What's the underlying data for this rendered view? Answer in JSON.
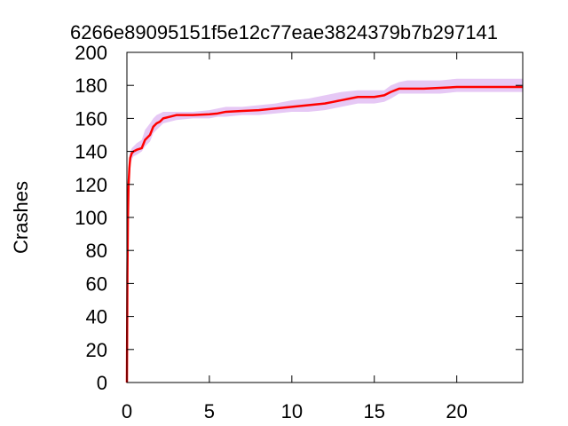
{
  "chart_data": {
    "type": "line",
    "title": "6266e89095151f5e12c77eae3824379b7b297141",
    "xlabel": "",
    "ylabel": "Crashes",
    "xlim": [
      0,
      24
    ],
    "ylim": [
      0,
      200
    ],
    "xticks": [
      0,
      5,
      10,
      15,
      20
    ],
    "yticks": [
      0,
      20,
      40,
      60,
      80,
      100,
      120,
      140,
      160,
      180,
      200
    ],
    "grid": false,
    "line_color": "#ff0000",
    "band_color": "#e6c8f5",
    "series": [
      {
        "x": [
          0,
          0.03,
          0.06,
          0.1,
          0.15,
          0.2,
          0.3,
          0.4,
          0.6,
          0.9,
          1.1,
          1.4,
          1.6,
          1.8,
          2.0,
          2.2,
          2.6,
          3.0,
          4.0,
          5.0,
          5.5,
          6.0,
          7.0,
          8.0,
          9.0,
          10.0,
          11.0,
          12.0,
          12.5,
          13.0,
          14.0,
          15.0,
          15.6,
          16.0,
          16.5,
          17.0,
          18.0,
          19.0,
          20.0,
          21.0,
          22.0,
          23.0,
          24.0
        ],
        "y": [
          0,
          65,
          100,
          120,
          130,
          136,
          139,
          140,
          141,
          142,
          147,
          150,
          155,
          157,
          158,
          160,
          161,
          162,
          162,
          162.5,
          163,
          164,
          164.5,
          165,
          166,
          167,
          168,
          169,
          170,
          171,
          173,
          173,
          174,
          176,
          178,
          178,
          178,
          178.5,
          179,
          179,
          179,
          179,
          179
        ],
        "upper": [
          0,
          72,
          110,
          128,
          137,
          140,
          142,
          143,
          145,
          147,
          153,
          157,
          160,
          162,
          163,
          164,
          164,
          164,
          164,
          165,
          166,
          167,
          167,
          168,
          169,
          171,
          172,
          174,
          175,
          176,
          177,
          177,
          177,
          180,
          182,
          183,
          183,
          183,
          184,
          184,
          184,
          184,
          184
        ],
        "lower": [
          0,
          58,
          92,
          114,
          124,
          132,
          135,
          137,
          138,
          140,
          143,
          146,
          151,
          153,
          155,
          157,
          158,
          159,
          160,
          160,
          161,
          161,
          162,
          162,
          163,
          164,
          164,
          165,
          166,
          167,
          169,
          169,
          170,
          172,
          175,
          175,
          175,
          175,
          176,
          176,
          176,
          176,
          176
        ]
      }
    ]
  }
}
